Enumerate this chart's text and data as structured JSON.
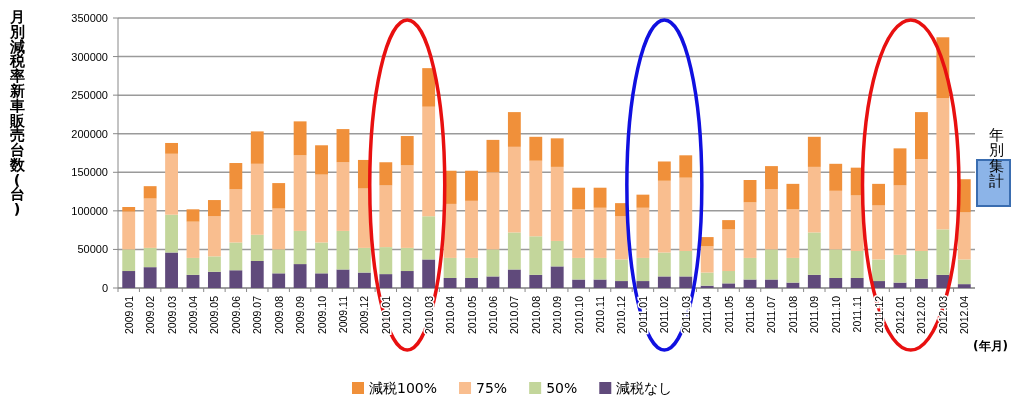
{
  "chart_data": {
    "type": "bar",
    "stacked": true,
    "ylabel": "月別減税率新車販売台数(台)",
    "xlabel": "(年月)",
    "categories": [
      "2009.01",
      "2009.02",
      "2009.03",
      "2009.04",
      "2009.05",
      "2009.06",
      "2009.07",
      "2009.08",
      "2009.09",
      "2009.10",
      "2009.11",
      "2009.12",
      "2010.01",
      "2010.02",
      "2010.03",
      "2010.04",
      "2010.05",
      "2010.06",
      "2010.07",
      "2010.08",
      "2010.09",
      "2010.10",
      "2010.11",
      "2010.12",
      "2011.01",
      "2011.02",
      "2011.03",
      "2011.04",
      "2011.05",
      "2011.06",
      "2011.07",
      "2011.08",
      "2011.09",
      "2011.10",
      "2011.11",
      "2011.12",
      "2012.01",
      "2012.02",
      "2012.03",
      "2012.04"
    ],
    "series": [
      {
        "name": "減税なし",
        "color": "#604a7b",
        "values": [
          22000,
          27000,
          46000,
          17000,
          21000,
          23000,
          35000,
          19000,
          31000,
          19000,
          24000,
          20000,
          18000,
          22000,
          37000,
          13000,
          13000,
          15000,
          24000,
          17000,
          28000,
          11000,
          11000,
          9000,
          9000,
          15000,
          15000,
          3000,
          6000,
          11000,
          11000,
          7000,
          17000,
          13000,
          13000,
          9000,
          7000,
          12000,
          17000,
          5000
        ]
      },
      {
        "name": "50%",
        "color": "#c3d69b",
        "values": [
          28000,
          25000,
          49000,
          22000,
          20000,
          36000,
          34000,
          31000,
          43000,
          40000,
          50000,
          32000,
          35000,
          30000,
          56000,
          26000,
          26000,
          35000,
          48000,
          50000,
          33000,
          28000,
          28000,
          28000,
          30000,
          31000,
          33000,
          17000,
          16000,
          28000,
          39000,
          32000,
          55000,
          37000,
          35000,
          28000,
          36000,
          36000,
          59000,
          32000
        ]
      },
      {
        "name": "75%",
        "color": "#f9be8f",
        "values": [
          49000,
          64000,
          79000,
          47000,
          52000,
          69000,
          92000,
          53000,
          98000,
          88000,
          89000,
          77000,
          80000,
          107000,
          142000,
          70000,
          74000,
          100000,
          111000,
          98000,
          96000,
          63000,
          65000,
          56000,
          65000,
          93000,
          95000,
          34000,
          54000,
          72000,
          78000,
          63000,
          85000,
          76000,
          72000,
          70000,
          90000,
          119000,
          170000,
          61000
        ]
      },
      {
        "name": "減税100%",
        "color": "#f0903a",
        "values": [
          6000,
          16000,
          14000,
          16000,
          21000,
          34000,
          42000,
          33000,
          44000,
          38000,
          43000,
          37000,
          30000,
          38000,
          50000,
          43000,
          39000,
          42000,
          45000,
          31000,
          37000,
          28000,
          26000,
          17000,
          17000,
          25000,
          29000,
          12000,
          12000,
          29000,
          30000,
          33000,
          39000,
          35000,
          36000,
          28000,
          48000,
          61000,
          79000,
          43000
        ]
      }
    ],
    "ylim": [
      0,
      350000
    ],
    "yticks": [
      0,
      50000,
      100000,
      150000,
      200000,
      250000,
      300000,
      350000
    ],
    "grid": "y",
    "legend": "bottom",
    "annotations": [
      "年別集計"
    ]
  }
}
